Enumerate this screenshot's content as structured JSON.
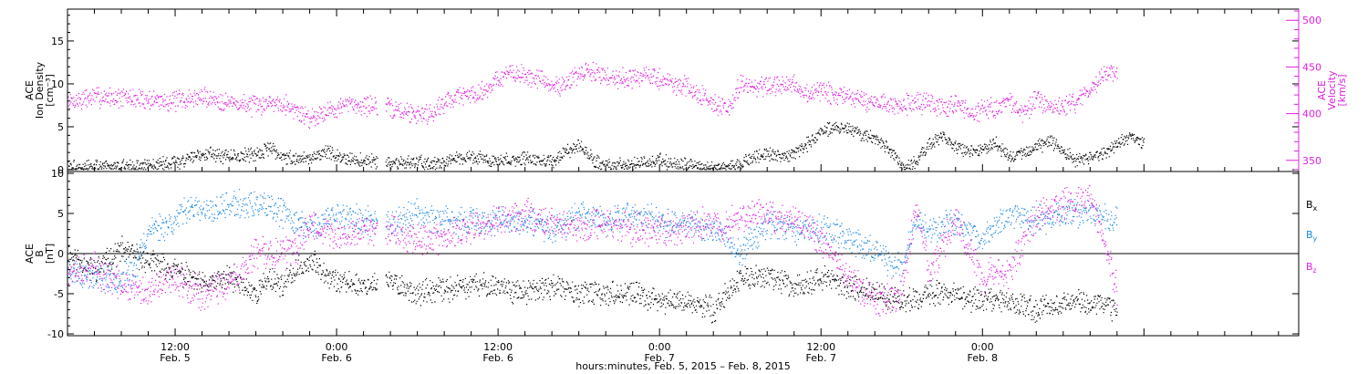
{
  "chart_data": [
    {
      "type": "scatter",
      "panel": "top",
      "left_axis": {
        "label_lines": [
          "ACE",
          "Ion Density",
          "[cm⁻³]"
        ],
        "ylim": [
          0,
          18.5
        ],
        "ticks": [
          0,
          5,
          10,
          15
        ],
        "color": "#000000"
      },
      "right_axis": {
        "label_lines": [
          "ACE",
          "Velocity",
          "[km/s]"
        ],
        "ylim": [
          340,
          510
        ],
        "ticks": [
          350,
          400,
          450,
          500
        ],
        "color": "#e020e0"
      },
      "series": [
        {
          "axis": "left",
          "color": "#000000",
          "points": [
            [
              0,
              0.3
            ],
            [
              3,
              0.3
            ],
            [
              5,
              0.4
            ],
            [
              8,
              0.8
            ],
            [
              10,
              2
            ],
            [
              12,
              1.5
            ],
            [
              14,
              1.8
            ],
            [
              15,
              2.5
            ],
            [
              16,
              1.5
            ],
            [
              18,
              1.2
            ],
            [
              19,
              2.2
            ],
            [
              20,
              1.5
            ],
            [
              21,
              1.2
            ],
            [
              22,
              1.0
            ],
            [
              24,
              0.9
            ],
            [
              26,
              0.8
            ],
            [
              28,
              0.8
            ],
            [
              30,
              1.5
            ],
            [
              32,
              1.0
            ],
            [
              34,
              1.3
            ],
            [
              36,
              0.8
            ],
            [
              37,
              2.0
            ],
            [
              38,
              3.0
            ],
            [
              39,
              1.2
            ],
            [
              40,
              0.4
            ],
            [
              42,
              0.6
            ],
            [
              44,
              1.0
            ],
            [
              46,
              0.5
            ],
            [
              48,
              0.3
            ],
            [
              49,
              0.3
            ],
            [
              50,
              0.8
            ],
            [
              51,
              1.5
            ],
            [
              52,
              1.8
            ],
            [
              53,
              1.5
            ],
            [
              54,
              2.0
            ],
            [
              55,
              3.0
            ],
            [
              56,
              4.5
            ],
            [
              57,
              5.0
            ],
            [
              58,
              4.8
            ],
            [
              59,
              4.0
            ],
            [
              60,
              3.5
            ],
            [
              61,
              2.5
            ],
            [
              62,
              0.4
            ],
            [
              63,
              0.8
            ],
            [
              64,
              3.0
            ],
            [
              65,
              4.0
            ],
            [
              66,
              2.5
            ],
            [
              67,
              2.0
            ],
            [
              68,
              2.2
            ],
            [
              69,
              3.0
            ],
            [
              70,
              1.5
            ],
            [
              71,
              2.0
            ],
            [
              72,
              2.5
            ],
            [
              73,
              3.5
            ],
            [
              74,
              2.0
            ],
            [
              75,
              1.0
            ],
            [
              76,
              1.5
            ],
            [
              77,
              2.0
            ],
            [
              78,
              3.0
            ],
            [
              79,
              4.0
            ],
            [
              80,
              3.0
            ]
          ]
        },
        {
          "axis": "right",
          "color": "#e020e0",
          "points": [
            [
              0,
              412
            ],
            [
              2,
              418
            ],
            [
              4,
              417
            ],
            [
              6,
              415
            ],
            [
              8,
              413
            ],
            [
              10,
              418
            ],
            [
              12,
              412
            ],
            [
              14,
              408
            ],
            [
              15,
              412
            ],
            [
              16,
              412
            ],
            [
              17,
              402
            ],
            [
              18,
              395
            ],
            [
              19,
              402
            ],
            [
              21,
              410
            ],
            [
              23,
              408
            ],
            [
              25,
              402
            ],
            [
              26,
              400
            ],
            [
              27,
              400
            ],
            [
              28,
              412
            ],
            [
              29,
              420
            ],
            [
              30,
              420
            ],
            [
              31,
              425
            ],
            [
              32,
              438
            ],
            [
              33,
              443
            ],
            [
              34,
              440
            ],
            [
              35,
              438
            ],
            [
              36,
              428
            ],
            [
              37,
              433
            ],
            [
              38,
              442
            ],
            [
              39,
              445
            ],
            [
              40,
              440
            ],
            [
              41,
              438
            ],
            [
              42,
              438
            ],
            [
              43,
              440
            ],
            [
              44,
              437
            ],
            [
              45,
              432
            ],
            [
              46,
              428
            ],
            [
              47,
              420
            ],
            [
              48,
              412
            ],
            [
              49,
              403
            ],
            [
              50,
              430
            ],
            [
              52,
              428
            ],
            [
              54,
              430
            ],
            [
              55,
              420
            ],
            [
              56,
              425
            ],
            [
              57,
              418
            ],
            [
              58,
              420
            ],
            [
              59,
              414
            ],
            [
              60,
              412
            ],
            [
              61,
              410
            ],
            [
              62,
              408
            ],
            [
              63,
              412
            ],
            [
              64,
              410
            ],
            [
              65,
              405
            ],
            [
              66,
              412
            ],
            [
              67,
              400
            ],
            [
              68,
              403
            ],
            [
              69,
              408
            ],
            [
              70,
              412
            ],
            [
              71,
              400
            ],
            [
              72,
              415
            ],
            [
              73,
              405
            ],
            [
              74,
              408
            ],
            [
              75,
              412
            ],
            [
              76,
              425
            ],
            [
              77,
              445
            ],
            [
              78,
              445
            ]
          ]
        }
      ]
    },
    {
      "type": "scatter",
      "panel": "bottom",
      "left_axis": {
        "label_lines": [
          "ACE",
          "B",
          "[nT]"
        ],
        "ylim": [
          -10,
          10
        ],
        "ticks": [
          -10,
          -5,
          0,
          5,
          10
        ],
        "color": "#000000"
      },
      "zero_line": true,
      "series": [
        {
          "name": "Bx",
          "color": "#000000",
          "points": [
            [
              0,
              0
            ],
            [
              2,
              -2
            ],
            [
              4,
              0.5
            ],
            [
              6,
              -1
            ],
            [
              8,
              -2
            ],
            [
              10,
              -4
            ],
            [
              12,
              -3
            ],
            [
              14,
              -5
            ],
            [
              15,
              -3
            ],
            [
              16,
              -4
            ],
            [
              17,
              -2
            ],
            [
              18,
              -1
            ],
            [
              19,
              -2
            ],
            [
              20,
              -3.5
            ],
            [
              22,
              -4
            ],
            [
              24,
              -3.5
            ],
            [
              26,
              -5
            ],
            [
              28,
              -4.5
            ],
            [
              30,
              -4
            ],
            [
              32,
              -4
            ],
            [
              34,
              -5
            ],
            [
              36,
              -4
            ],
            [
              37,
              -4.5
            ],
            [
              38,
              -5
            ],
            [
              40,
              -5
            ],
            [
              42,
              -5
            ],
            [
              44,
              -6
            ],
            [
              46,
              -6
            ],
            [
              48,
              -7
            ],
            [
              49,
              -5
            ],
            [
              50,
              -3
            ],
            [
              52,
              -3
            ],
            [
              54,
              -4
            ],
            [
              56,
              -3
            ],
            [
              58,
              -4
            ],
            [
              60,
              -5
            ],
            [
              62,
              -6
            ],
            [
              64,
              -5
            ],
            [
              66,
              -5
            ],
            [
              68,
              -6
            ],
            [
              70,
              -6
            ],
            [
              72,
              -7
            ],
            [
              74,
              -6
            ],
            [
              76,
              -6
            ],
            [
              78,
              -7
            ]
          ]
        },
        {
          "name": "By",
          "color": "#1e88e5",
          "points": [
            [
              0,
              -2
            ],
            [
              2,
              -3
            ],
            [
              4,
              -3
            ],
            [
              5,
              -2
            ],
            [
              6,
              3
            ],
            [
              8,
              4
            ],
            [
              9,
              6
            ],
            [
              10,
              5
            ],
            [
              12,
              6
            ],
            [
              13,
              6
            ],
            [
              14,
              6
            ],
            [
              15,
              5.5
            ],
            [
              16,
              5
            ],
            [
              18,
              3
            ],
            [
              20,
              5
            ],
            [
              22,
              4
            ],
            [
              24,
              4
            ],
            [
              26,
              5
            ],
            [
              28,
              4
            ],
            [
              30,
              4
            ],
            [
              32,
              4
            ],
            [
              34,
              4
            ],
            [
              36,
              3
            ],
            [
              38,
              5
            ],
            [
              40,
              4
            ],
            [
              42,
              5
            ],
            [
              44,
              4
            ],
            [
              46,
              4
            ],
            [
              48,
              3
            ],
            [
              49,
              2
            ],
            [
              50,
              0
            ],
            [
              52,
              4
            ],
            [
              54,
              3
            ],
            [
              56,
              3
            ],
            [
              58,
              2
            ],
            [
              60,
              0
            ],
            [
              62,
              -2
            ],
            [
              63,
              4
            ],
            [
              64,
              3
            ],
            [
              66,
              4
            ],
            [
              68,
              2
            ],
            [
              70,
              5
            ],
            [
              72,
              4
            ],
            [
              74,
              5
            ],
            [
              76,
              5
            ],
            [
              78,
              4
            ]
          ]
        },
        {
          "name": "Bz",
          "color": "#e020e0",
          "points": [
            [
              0,
              -2
            ],
            [
              2,
              -2
            ],
            [
              4,
              -4
            ],
            [
              6,
              -5
            ],
            [
              8,
              -3
            ],
            [
              10,
              -5
            ],
            [
              12,
              -4
            ],
            [
              14,
              0
            ],
            [
              16,
              0
            ],
            [
              17,
              0.5
            ],
            [
              18,
              4
            ],
            [
              20,
              2
            ],
            [
              22,
              3
            ],
            [
              24,
              3
            ],
            [
              26,
              2
            ],
            [
              28,
              2
            ],
            [
              30,
              3
            ],
            [
              32,
              4
            ],
            [
              34,
              5
            ],
            [
              36,
              4
            ],
            [
              38,
              3
            ],
            [
              40,
              4
            ],
            [
              42,
              3
            ],
            [
              44,
              3
            ],
            [
              46,
              3
            ],
            [
              48,
              4
            ],
            [
              49,
              3
            ],
            [
              50,
              5
            ],
            [
              52,
              5
            ],
            [
              54,
              4
            ],
            [
              56,
              2
            ],
            [
              58,
              -3
            ],
            [
              60,
              -6
            ],
            [
              62,
              -5
            ],
            [
              63,
              6
            ],
            [
              64,
              -2
            ],
            [
              66,
              4
            ],
            [
              68,
              -3
            ],
            [
              70,
              -2
            ],
            [
              72,
              5
            ],
            [
              74,
              6
            ],
            [
              76,
              7
            ],
            [
              78,
              -5
            ]
          ]
        }
      ],
      "legend": [
        {
          "name": "B",
          "sub": "x",
          "color": "#000000"
        },
        {
          "name": "B",
          "sub": "y",
          "color": "#1e88e5"
        },
        {
          "name": "B",
          "sub": "z",
          "color": "#e020e0"
        }
      ]
    }
  ],
  "x_axis": {
    "xlim_hours": [
      0,
      91.5
    ],
    "tick_labels": [
      {
        "t": 8.0,
        "time": "12:00",
        "date": "Feb. 5"
      },
      {
        "t": 20.0,
        "time": "0:00",
        "date": "Feb. 6"
      },
      {
        "t": 32.0,
        "time": "12:00",
        "date": "Feb. 6"
      },
      {
        "t": 44.0,
        "time": "0:00",
        "date": "Feb. 7"
      },
      {
        "t": 56.0,
        "time": "12:00",
        "date": "Feb. 7"
      },
      {
        "t": 68.0,
        "time": "0:00",
        "date": "Feb. 8"
      }
    ],
    "title": "hours:minutes, Feb. 5, 2015 – Feb. 8, 2015"
  }
}
